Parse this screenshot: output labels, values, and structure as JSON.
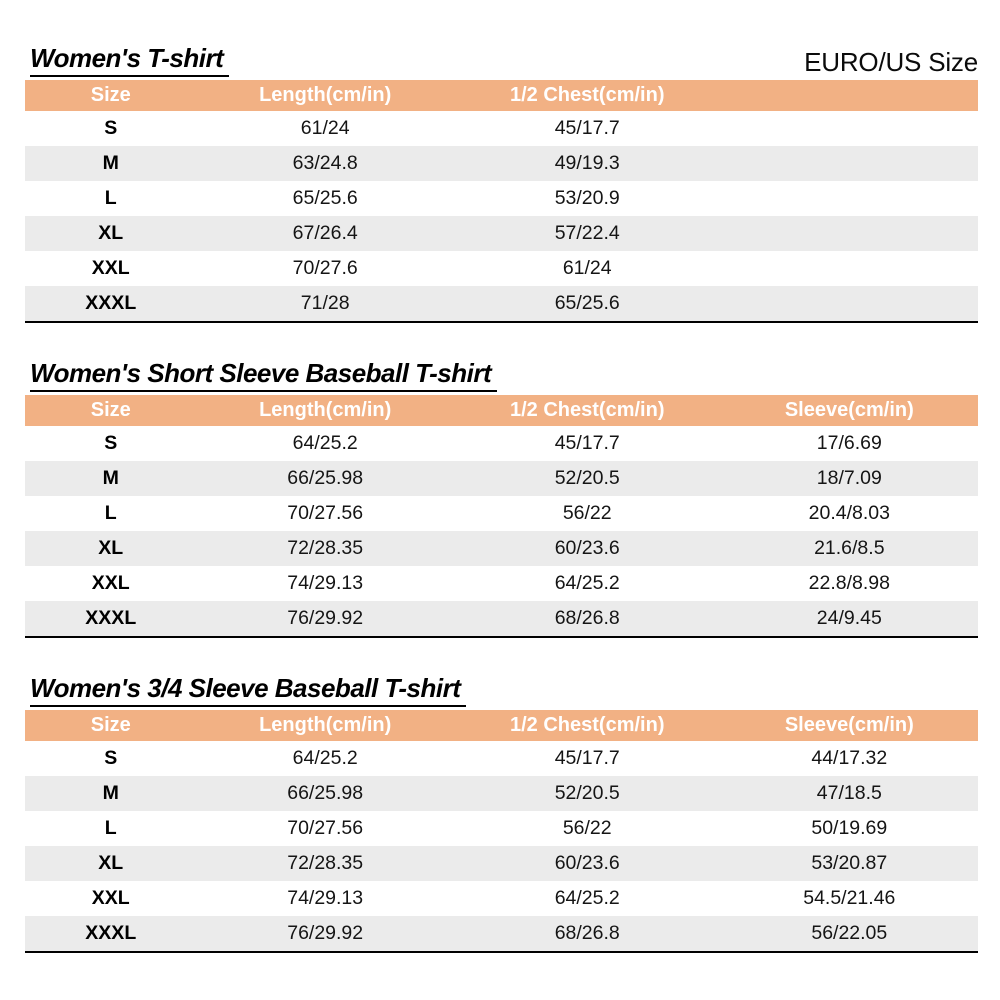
{
  "page_note": "EURO/US Size",
  "colors": {
    "header_bg": "#F2B184",
    "header_text": "#ffffff",
    "alt_row_bg": "#EBEBEB",
    "title_underline": "#000000",
    "table_bottom_border": "#000000"
  },
  "tables": [
    {
      "title": "Women's T-shirt",
      "columns": [
        "Size",
        "Length(cm/in)",
        "1/2 Chest(cm/in)",
        ""
      ],
      "rows": [
        [
          "S",
          "61/24",
          "45/17.7",
          ""
        ],
        [
          "M",
          "63/24.8",
          "49/19.3",
          ""
        ],
        [
          "L",
          "65/25.6",
          "53/20.9",
          ""
        ],
        [
          "XL",
          "67/26.4",
          "57/22.4",
          ""
        ],
        [
          "XXL",
          "70/27.6",
          "61/24",
          ""
        ],
        [
          "XXXL",
          "71/28",
          "65/25.6",
          ""
        ]
      ]
    },
    {
      "title": "Women's Short Sleeve Baseball T-shirt",
      "columns": [
        "Size",
        "Length(cm/in)",
        "1/2 Chest(cm/in)",
        "Sleeve(cm/in)"
      ],
      "rows": [
        [
          "S",
          "64/25.2",
          "45/17.7",
          "17/6.69"
        ],
        [
          "M",
          "66/25.98",
          "52/20.5",
          "18/7.09"
        ],
        [
          "L",
          "70/27.56",
          "56/22",
          "20.4/8.03"
        ],
        [
          "XL",
          "72/28.35",
          "60/23.6",
          "21.6/8.5"
        ],
        [
          "XXL",
          "74/29.13",
          "64/25.2",
          "22.8/8.98"
        ],
        [
          "XXXL",
          "76/29.92",
          "68/26.8",
          "24/9.45"
        ]
      ]
    },
    {
      "title": "Women's 3/4 Sleeve Baseball T-shirt",
      "columns": [
        "Size",
        "Length(cm/in)",
        "1/2 Chest(cm/in)",
        "Sleeve(cm/in)"
      ],
      "rows": [
        [
          "S",
          "64/25.2",
          "45/17.7",
          "44/17.32"
        ],
        [
          "M",
          "66/25.98",
          "52/20.5",
          "47/18.5"
        ],
        [
          "L",
          "70/27.56",
          "56/22",
          "50/19.69"
        ],
        [
          "XL",
          "72/28.35",
          "60/23.6",
          "53/20.87"
        ],
        [
          "XXL",
          "74/29.13",
          "64/25.2",
          "54.5/21.46"
        ],
        [
          "XXXL",
          "76/29.92",
          "68/26.8",
          "56/22.05"
        ]
      ]
    }
  ]
}
